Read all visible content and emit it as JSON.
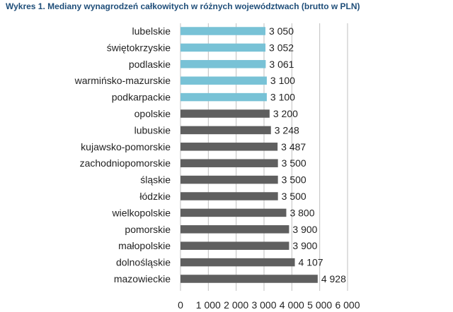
{
  "colors": {
    "highlight": "#78c2d6",
    "default": "#5f5f5f",
    "gridline": "#bfbfbf",
    "title": "#1f4e79"
  },
  "chart_data": {
    "type": "bar",
    "orientation": "horizontal",
    "title": "Wykres 1. Mediany wynagrodzeń całkowitych w różnych województwach (brutto w PLN)",
    "categories": [
      "lubelskie",
      "świętokrzyskie",
      "podlaskie",
      "warmińsko-mazurskie",
      "podkarpackie",
      "opolskie",
      "lubuskie",
      "kujawsko-pomorskie",
      "zachodniopomorskie",
      "śląskie",
      "łódzkie",
      "wielkopolskie",
      "pomorskie",
      "małopolskie",
      "dolnośląskie",
      "mazowieckie"
    ],
    "values": [
      3050,
      3052,
      3061,
      3100,
      3100,
      3200,
      3248,
      3487,
      3500,
      3500,
      3500,
      3800,
      3900,
      3900,
      4107,
      4928
    ],
    "value_labels": [
      "3 050",
      "3 052",
      "3 061",
      "3 100",
      "3 100",
      "3 200",
      "3 248",
      "3 487",
      "3 500",
      "3 500",
      "3 500",
      "3 800",
      "3 900",
      "3 900",
      "4 107",
      "4 928"
    ],
    "highlighted": [
      true,
      true,
      true,
      true,
      true,
      false,
      false,
      false,
      false,
      false,
      false,
      false,
      false,
      false,
      false,
      false
    ],
    "xlim": [
      0,
      6000
    ],
    "x_ticks": [
      0,
      1000,
      2000,
      3000,
      4000,
      5000,
      6000
    ],
    "x_tick_labels": [
      "0",
      "1 000",
      "2 000",
      "3 000",
      "4 000",
      "5 000",
      "6 000"
    ],
    "xlabel": "",
    "ylabel": "",
    "grid": true,
    "legend": "none"
  }
}
